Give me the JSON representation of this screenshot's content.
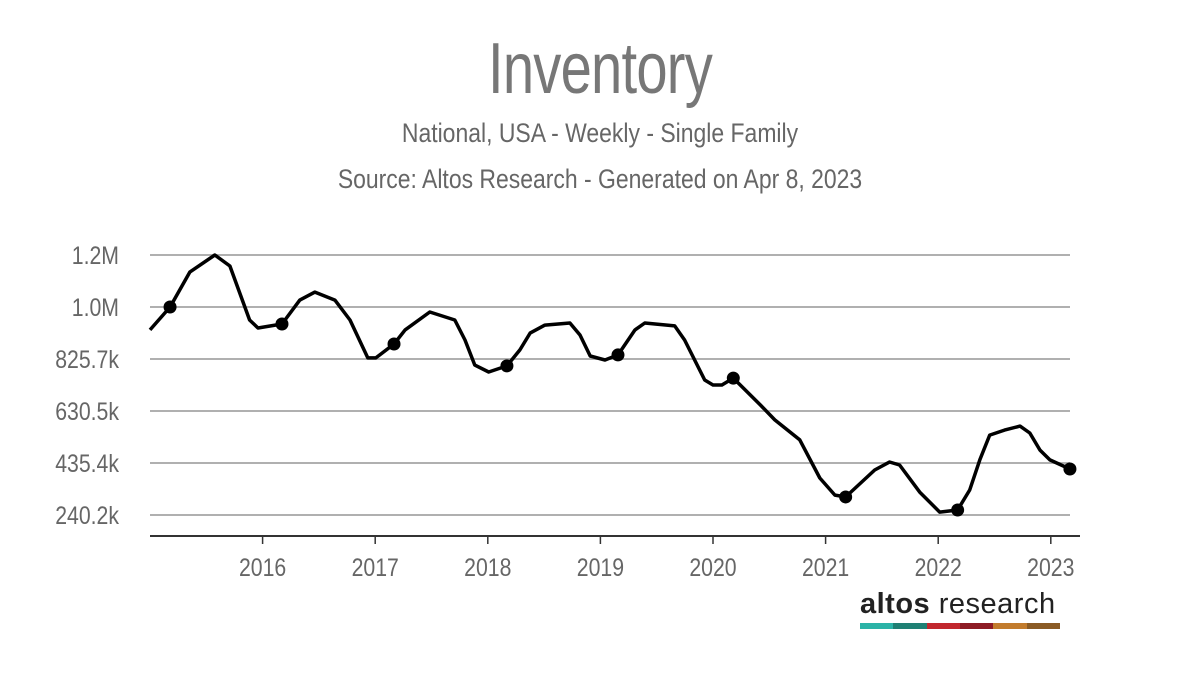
{
  "chart_data": {
    "type": "line",
    "title": "Inventory",
    "subtitle": "National, USA - Weekly - Single Family",
    "source": "Source: Altos Research - Generated on Apr 8, 2023",
    "xlabel": "",
    "ylabel": "",
    "x_range": [
      "2015-01-01",
      "2023-04-08"
    ],
    "x_ticks": [
      "2016",
      "2017",
      "2018",
      "2019",
      "2020",
      "2021",
      "2022",
      "2023"
    ],
    "y_range": [
      161400,
      1216100
    ],
    "y_ticks": [
      {
        "value": 1216100,
        "label": "1.2M"
      },
      {
        "value": 1020900,
        "label": "1.0M"
      },
      {
        "value": 825700,
        "label": "825.7k"
      },
      {
        "value": 630500,
        "label": "630.5k"
      },
      {
        "value": 435400,
        "label": "435.4k"
      },
      {
        "value": 240200,
        "label": "240.2k"
      }
    ],
    "grid": "horizontal",
    "line_color": "#000000",
    "grid_color": "#b0b0b0",
    "series": [
      {
        "points": [
          [
            "2015-01-01",
            935000
          ],
          [
            "2015-03-07",
            1021000
          ],
          [
            "2015-05-10",
            1152000
          ],
          [
            "2015-07-30",
            1216000
          ],
          [
            "2015-09-17",
            1175000
          ],
          [
            "2015-11-20",
            972000
          ],
          [
            "2015-12-17",
            942000
          ],
          [
            "2016-03-04",
            957000
          ],
          [
            "2016-05-01",
            1047000
          ],
          [
            "2016-06-19",
            1077000
          ],
          [
            "2016-08-23",
            1047000
          ],
          [
            "2016-10-11",
            972000
          ],
          [
            "2016-12-08",
            830000
          ],
          [
            "2017-01-03",
            830000
          ],
          [
            "2017-03-03",
            882000
          ],
          [
            "2017-04-08",
            935000
          ],
          [
            "2017-06-27",
            1002000
          ],
          [
            "2017-09-16",
            972000
          ],
          [
            "2017-10-19",
            897000
          ],
          [
            "2017-11-20",
            803000
          ],
          [
            "2018-01-04",
            777000
          ],
          [
            "2018-03-04",
            800000
          ],
          [
            "2018-04-15",
            860000
          ],
          [
            "2018-05-18",
            923000
          ],
          [
            "2018-07-05",
            953000
          ],
          [
            "2018-09-24",
            961000
          ],
          [
            "2018-10-27",
            916000
          ],
          [
            "2018-11-29",
            837000
          ],
          [
            "2019-01-16",
            822000
          ],
          [
            "2019-02-27",
            841000
          ],
          [
            "2019-04-23",
            935000
          ],
          [
            "2019-05-25",
            961000
          ],
          [
            "2019-08-30",
            950000
          ],
          [
            "2019-10-01",
            897000
          ],
          [
            "2019-12-05",
            747000
          ],
          [
            "2020-01-01",
            728000
          ],
          [
            "2020-01-30",
            728000
          ],
          [
            "2020-03-07",
            754000
          ],
          [
            "2020-06-03",
            653000
          ],
          [
            "2020-07-20",
            597000
          ],
          [
            "2020-10-09",
            522000
          ],
          [
            "2020-12-13",
            379000
          ],
          [
            "2021-01-31",
            315000
          ],
          [
            "2021-03-07",
            308000
          ],
          [
            "2021-06-09",
            409000
          ],
          [
            "2021-07-27",
            439000
          ],
          [
            "2021-08-29",
            428000
          ],
          [
            "2021-11-02",
            326000
          ],
          [
            "2022-01-06",
            251000
          ],
          [
            "2022-03-05",
            259000
          ],
          [
            "2022-04-13",
            334000
          ],
          [
            "2022-05-16",
            447000
          ],
          [
            "2022-06-17",
            540000
          ],
          [
            "2022-08-04",
            559000
          ],
          [
            "2022-09-23",
            574000
          ],
          [
            "2022-10-25",
            548000
          ],
          [
            "2022-11-27",
            484000
          ],
          [
            "2022-12-29",
            447000
          ],
          [
            "2023-03-04",
            413000
          ]
        ],
        "markers": [
          "2015-03-07",
          "2016-03-04",
          "2017-03-03",
          "2018-03-04",
          "2019-02-27",
          "2020-03-07",
          "2021-03-07",
          "2022-03-05",
          "2023-03-04"
        ]
      }
    ]
  },
  "logo": {
    "text_bold": "altos",
    "text_regular": " research",
    "colors": [
      "#2bb3a7",
      "#1f8074",
      "#c1272d",
      "#8d1b24",
      "#c27b2c",
      "#8a5a24"
    ]
  }
}
